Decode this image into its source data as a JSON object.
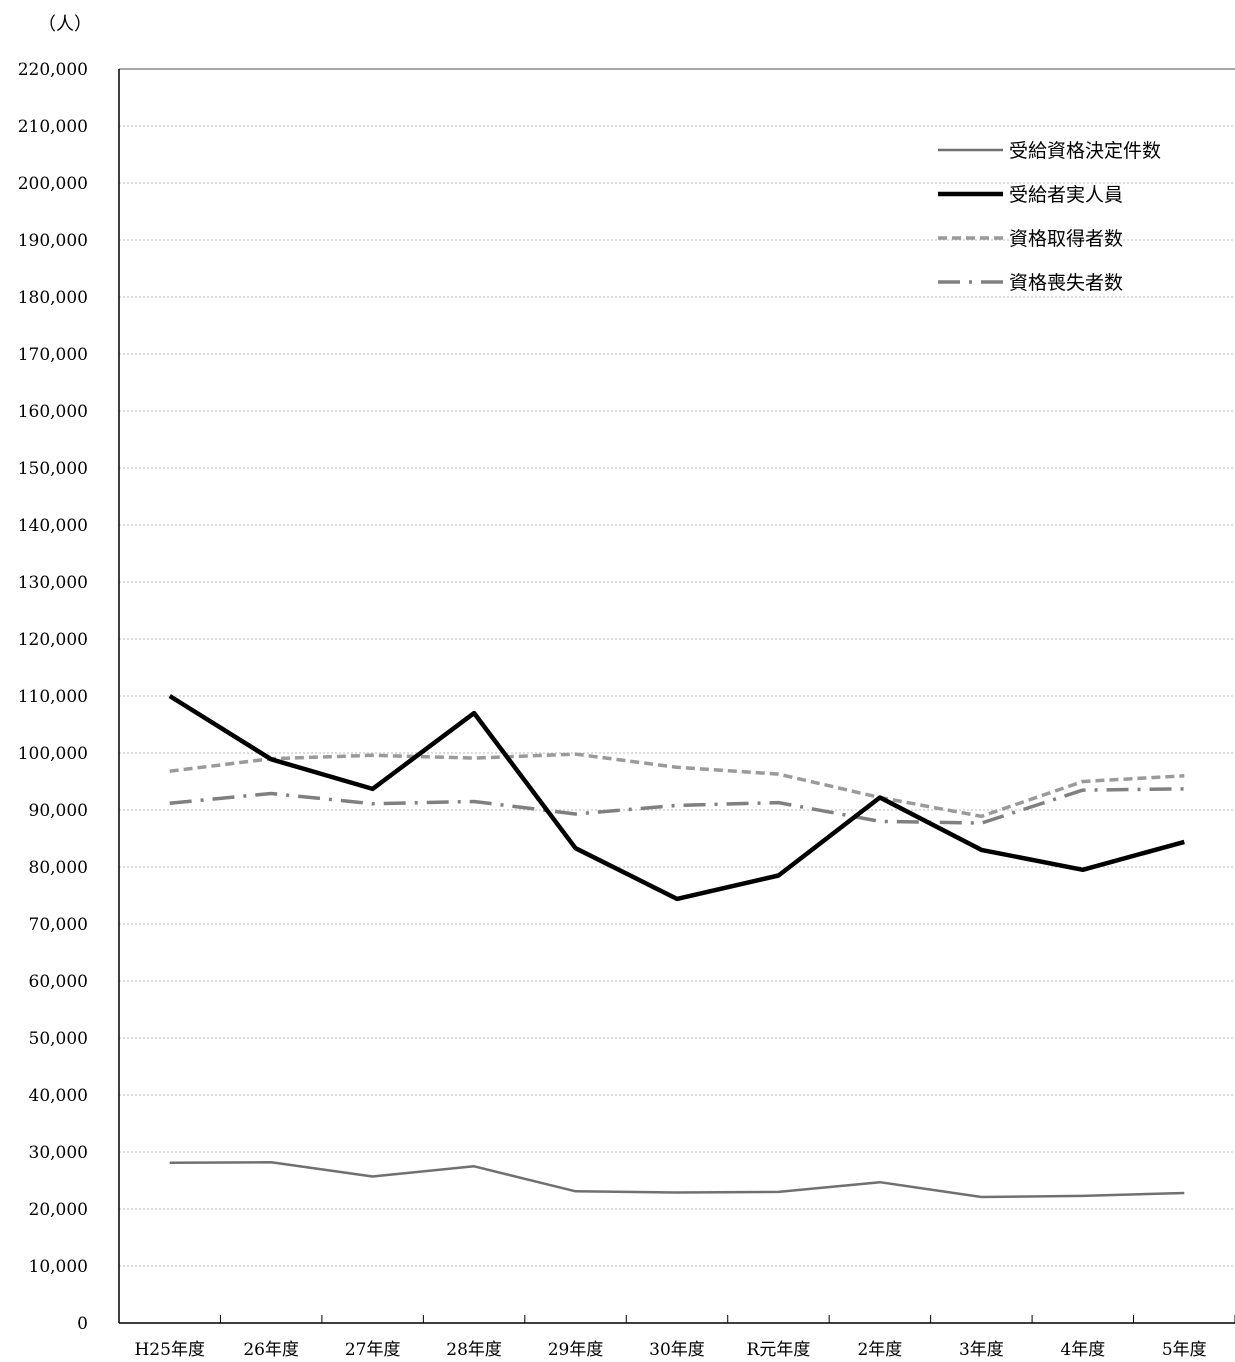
{
  "chart_data": {
    "type": "line",
    "unit_label": "（人）",
    "categories": [
      "H25年度",
      "26年度",
      "27年度",
      "28年度",
      "29年度",
      "30年度",
      "R元年度",
      "2年度",
      "3年度",
      "4年度",
      "5年度"
    ],
    "ylim": [
      0,
      220000
    ],
    "y_ticks": [
      0,
      10000,
      20000,
      30000,
      40000,
      50000,
      60000,
      70000,
      80000,
      90000,
      100000,
      110000,
      120000,
      130000,
      140000,
      150000,
      160000,
      170000,
      180000,
      190000,
      200000,
      210000,
      220000
    ],
    "y_tick_labels": [
      "0",
      "10,000",
      "20,000",
      "30,000",
      "40,000",
      "50,000",
      "60,000",
      "70,000",
      "80,000",
      "90,000",
      "100,000",
      "110,000",
      "120,000",
      "130,000",
      "140,000",
      "150,000",
      "160,000",
      "170,000",
      "180,000",
      "190,000",
      "200,000",
      "210,000",
      "220,000"
    ],
    "grid": true,
    "legend_position": "top-right",
    "series": [
      {
        "name": "受給資格決定件数",
        "color": "#707070",
        "style": "solid-thin",
        "values": [
          28100,
          28200,
          25700,
          27500,
          23100,
          22900,
          23000,
          24700,
          22100,
          22300,
          22800
        ]
      },
      {
        "name": "受給者実人員",
        "color": "#000000",
        "style": "solid-thick",
        "values": [
          110000,
          98900,
          93700,
          107000,
          83300,
          74400,
          78500,
          92200,
          83000,
          79500,
          84400
        ]
      },
      {
        "name": "資格取得者数",
        "color": "#9a9a9a",
        "style": "dashed",
        "values": [
          96800,
          99000,
          99600,
          99100,
          99800,
          97500,
          96300,
          92200,
          88900,
          95000,
          96000
        ]
      },
      {
        "name": "資格喪失者数",
        "color": "#808080",
        "style": "dash-dot",
        "values": [
          91200,
          92900,
          91100,
          91500,
          89300,
          90800,
          91300,
          88000,
          87700,
          93500,
          93700
        ]
      }
    ]
  }
}
